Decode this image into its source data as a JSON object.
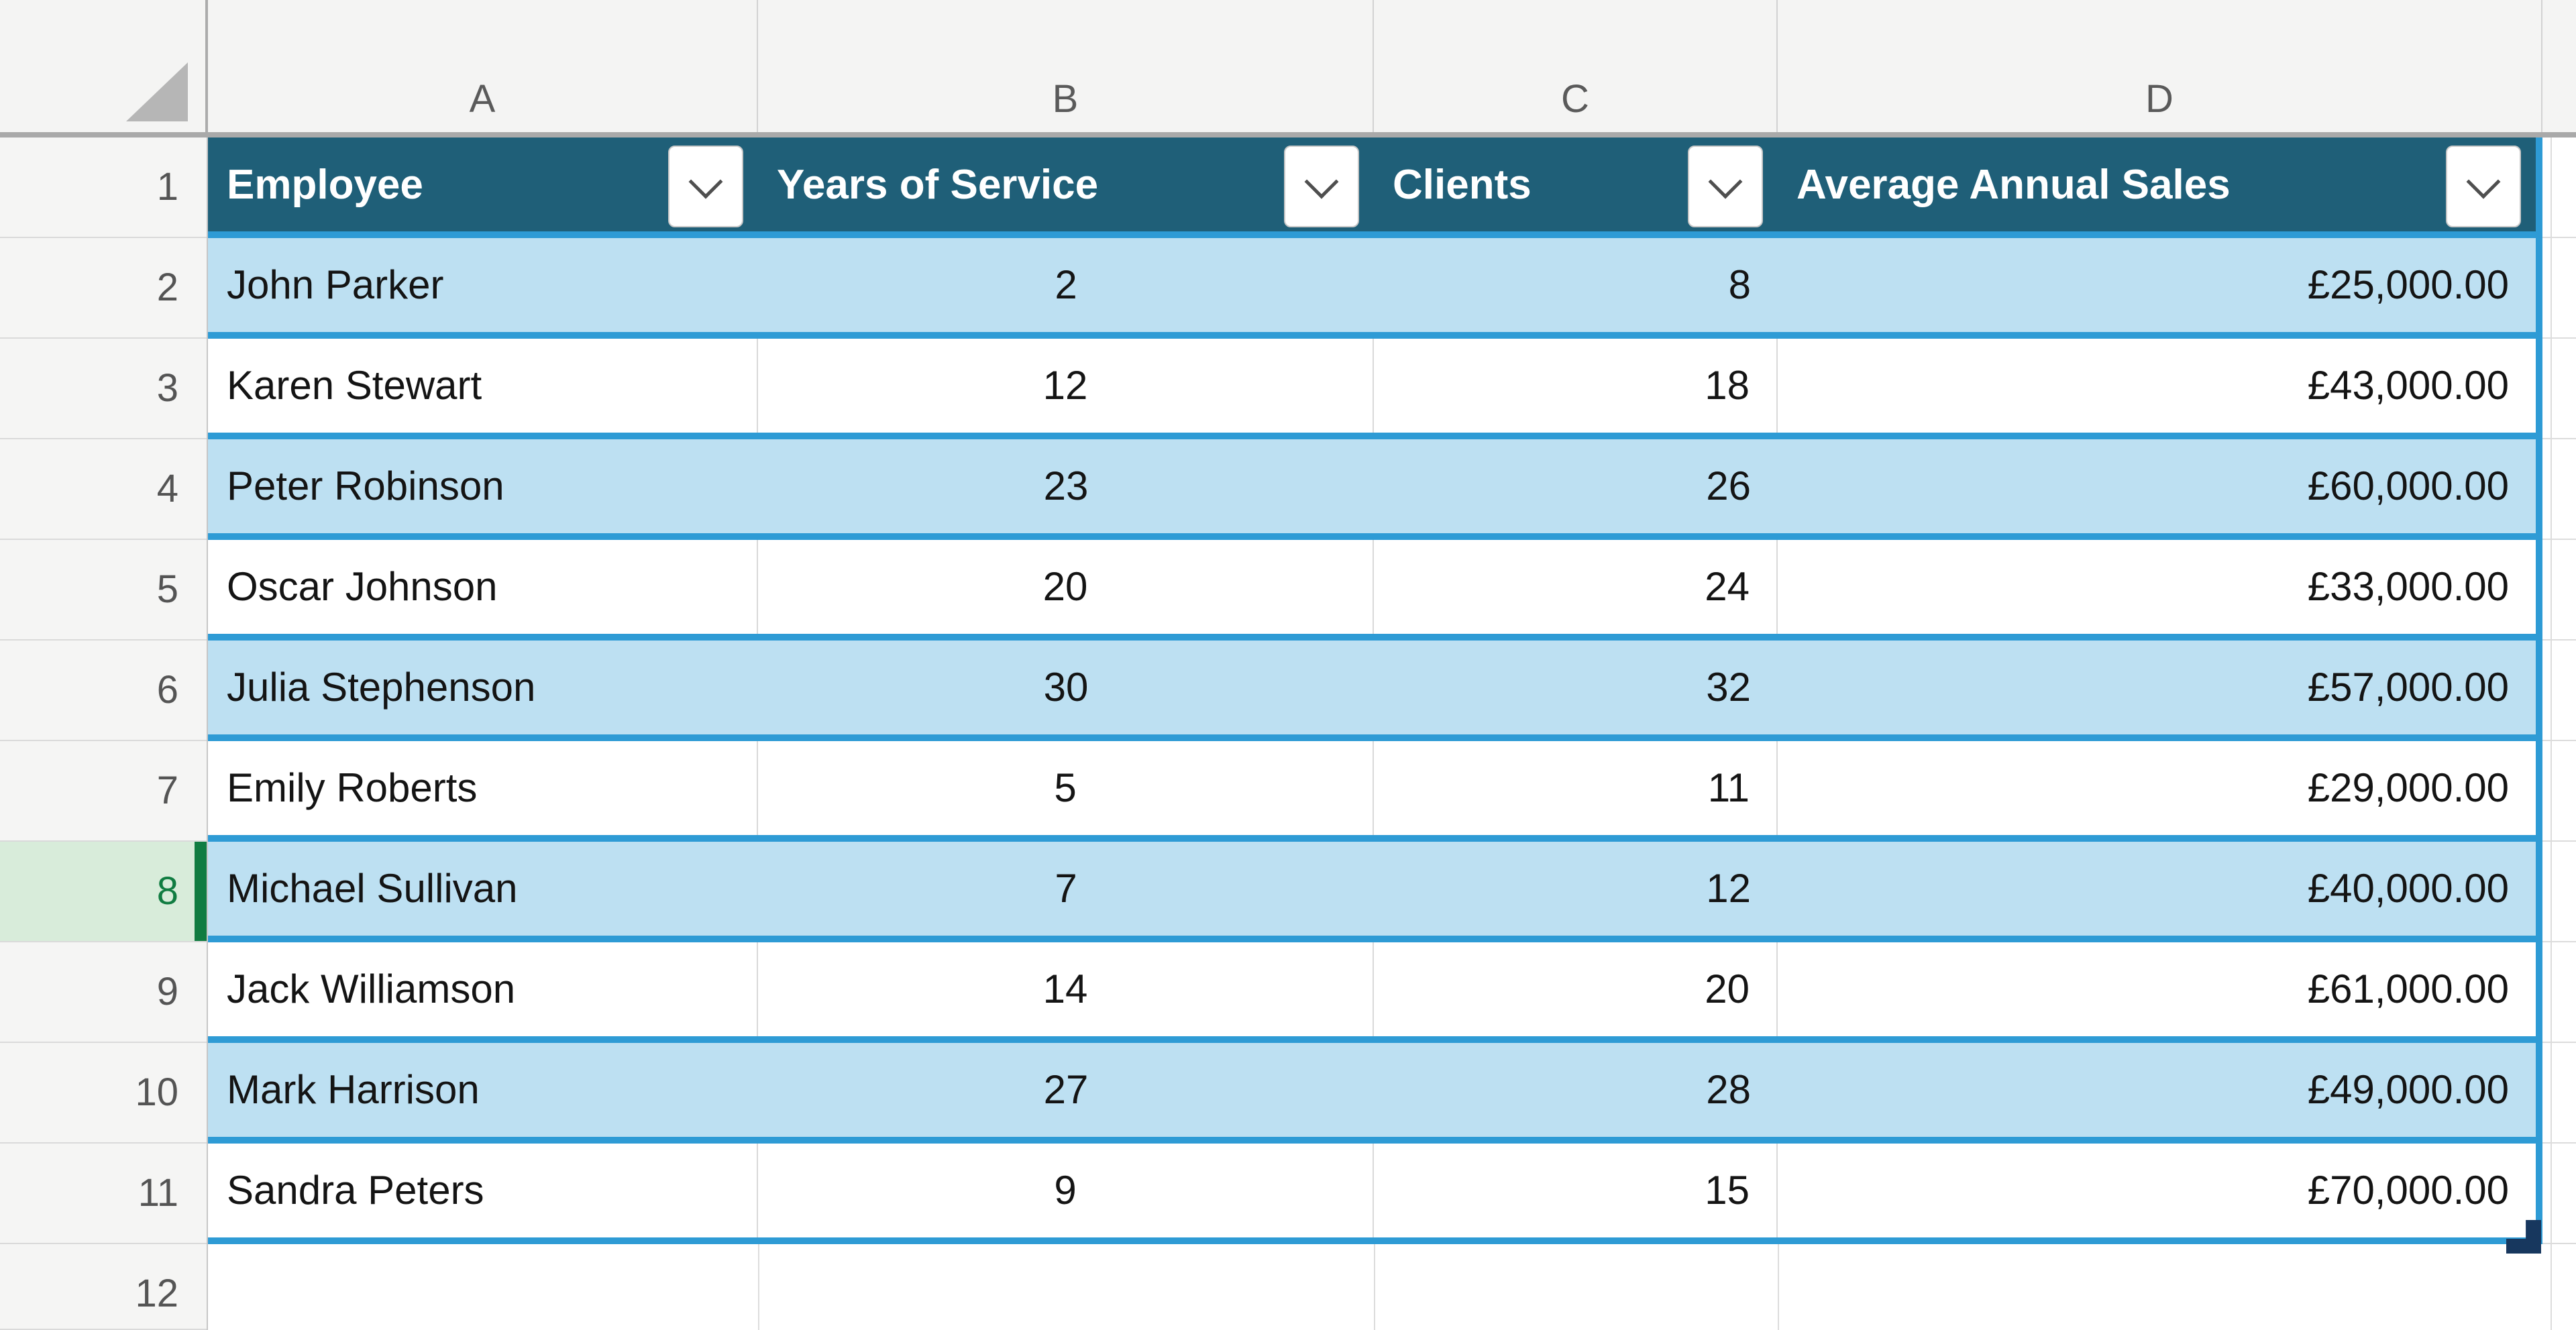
{
  "sheet": {
    "column_letters": [
      "A",
      "B",
      "C",
      "D"
    ],
    "row_numbers": [
      {
        "n": "1"
      },
      {
        "n": "2"
      },
      {
        "n": "3"
      },
      {
        "n": "4"
      },
      {
        "n": "5"
      },
      {
        "n": "6"
      },
      {
        "n": "7"
      },
      {
        "n": "8",
        "cls": "active"
      },
      {
        "n": "9"
      },
      {
        "n": "10"
      },
      {
        "n": "11"
      },
      {
        "n": "12"
      }
    ],
    "active_row": 8
  },
  "table": {
    "headers": [
      {
        "label": "Employee"
      },
      {
        "label": "Years of Service"
      },
      {
        "label": "Clients"
      },
      {
        "label": "Average Annual Sales"
      }
    ],
    "rows": [
      {
        "employee": "John Parker",
        "years": "2",
        "clients": "8",
        "sales": "£25,000.00"
      },
      {
        "employee": "Karen Stewart",
        "years": "12",
        "clients": "18",
        "sales": "£43,000.00"
      },
      {
        "employee": "Peter Robinson",
        "years": "23",
        "clients": "26",
        "sales": "£60,000.00"
      },
      {
        "employee": "Oscar Johnson",
        "years": "20",
        "clients": "24",
        "sales": "£33,000.00"
      },
      {
        "employee": "Julia Stephenson",
        "years": "30",
        "clients": "32",
        "sales": "£57,000.00"
      },
      {
        "employee": "Emily Roberts",
        "years": "5",
        "clients": "11",
        "sales": "£29,000.00"
      },
      {
        "employee": "Michael Sullivan",
        "years": "7",
        "clients": "12",
        "sales": "£40,000.00"
      },
      {
        "employee": "Jack Williamson",
        "years": "14",
        "clients": "20",
        "sales": "£61,000.00"
      },
      {
        "employee": "Mark Harrison",
        "years": "27",
        "clients": "28",
        "sales": "£49,000.00"
      },
      {
        "employee": "Sandra Peters",
        "years": "9",
        "clients": "15",
        "sales": "£70,000.00"
      }
    ]
  },
  "colors": {
    "header_fill": "#1F5F78",
    "band_fill": "#BDE0F2",
    "table_border": "#2E9BD5",
    "active_row_fill": "#D8ECDA",
    "active_row_accent": "#107C41",
    "resize_handle": "#17375E",
    "header_text": "#FFFFFF"
  }
}
